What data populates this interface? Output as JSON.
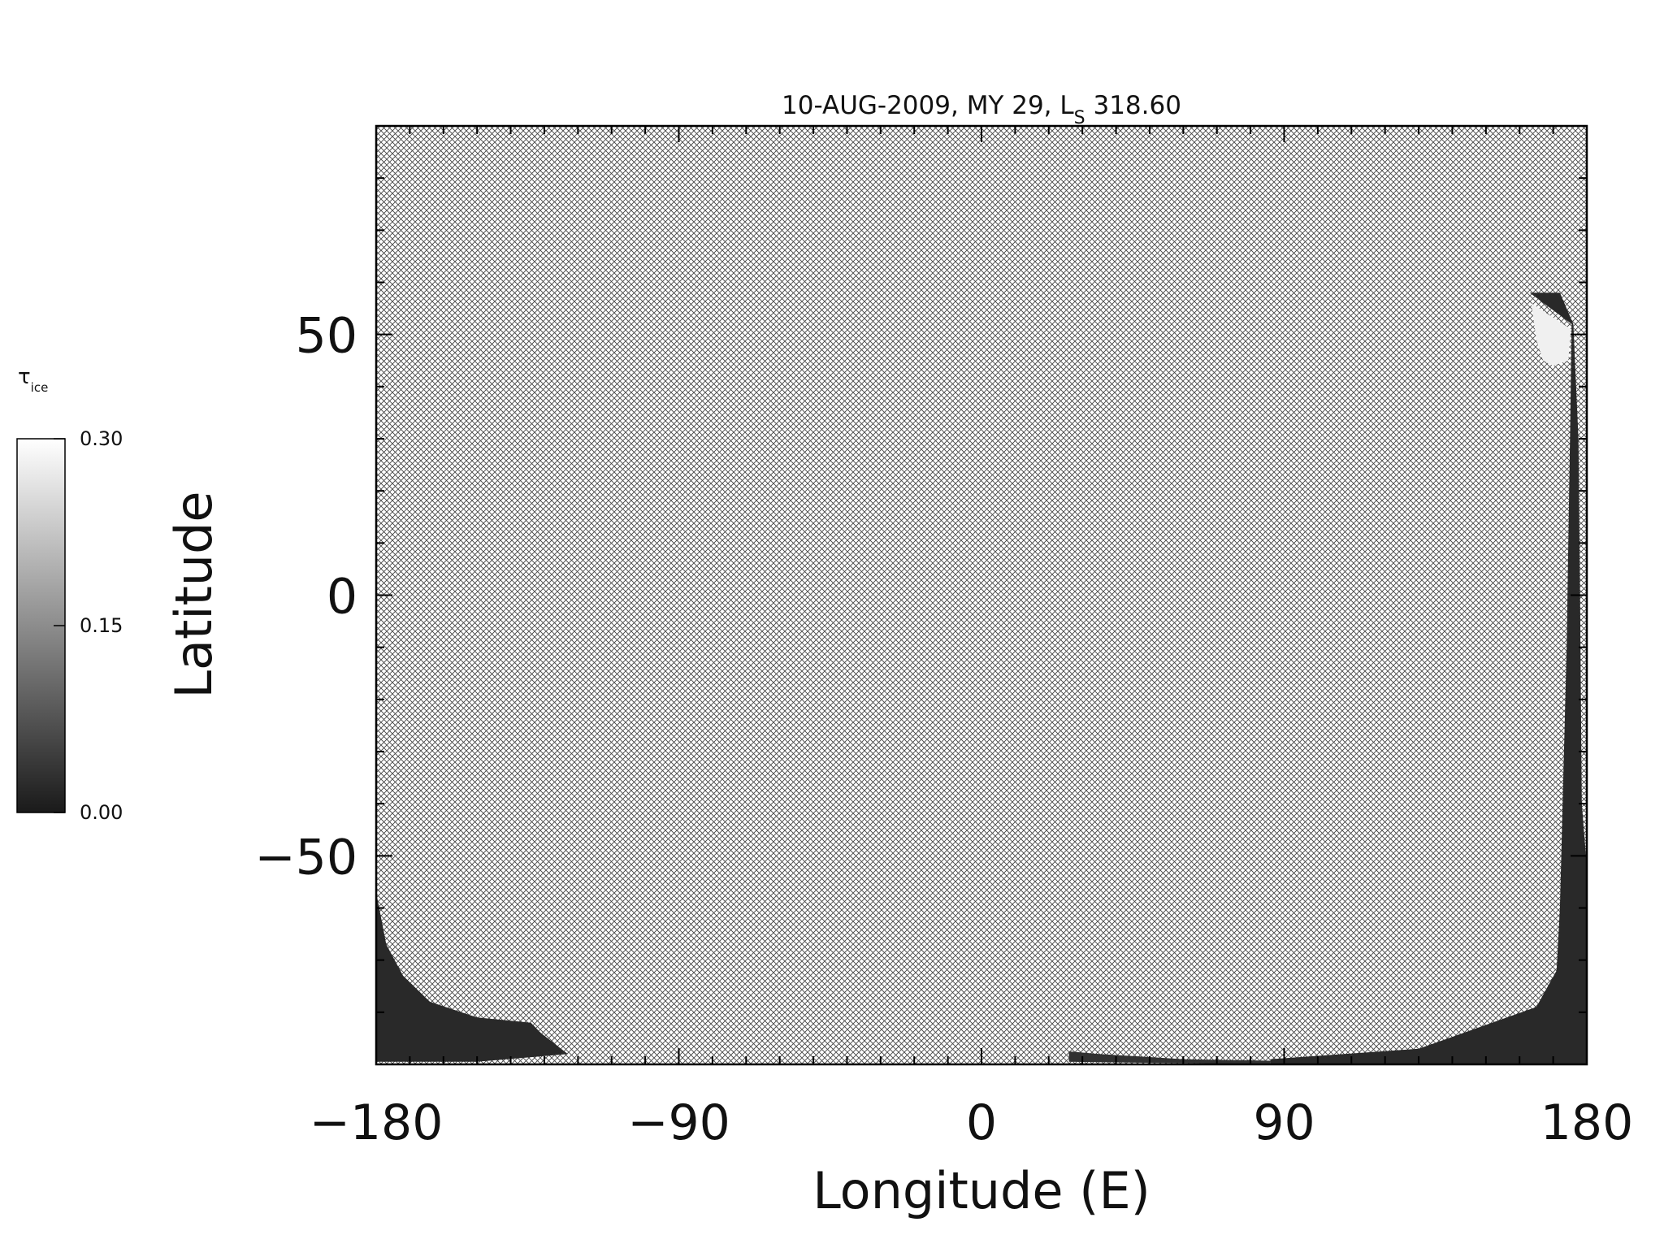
{
  "chart_data": {
    "type": "heatmap",
    "title": {
      "main": "10-AUG-2009, MY 29,  L",
      "subscript": "S",
      "value": " 318.60"
    },
    "xlabel": "Longitude (E)",
    "ylabel": "Latitude",
    "xlim": [
      -180,
      180
    ],
    "ylim": [
      -90,
      90
    ],
    "xticks": [
      {
        "value": -180,
        "label": "−180"
      },
      {
        "value": -90,
        "label": "−90"
      },
      {
        "value": 0,
        "label": "0"
      },
      {
        "value": 90,
        "label": "90"
      },
      {
        "value": 180,
        "label": "180"
      }
    ],
    "yticks": [
      {
        "value": -50,
        "label": "−50"
      },
      {
        "value": 0,
        "label": "0"
      },
      {
        "value": 50,
        "label": "50"
      }
    ],
    "x_minor_step": 10,
    "y_minor_step": 10,
    "no_data_fill": "cross-hatch",
    "colorbar": {
      "label_main": "τ",
      "label_sub": "ice",
      "range": [
        0.0,
        0.3
      ],
      "ticks": [
        {
          "value": 0.0,
          "label": "0.00"
        },
        {
          "value": 0.15,
          "label": "0.15"
        },
        {
          "value": 0.3,
          "label": "0.30"
        }
      ],
      "colors": [
        "#1a1a1a",
        "#ffffff"
      ]
    },
    "data_regions": [
      {
        "name": "eastern-strip",
        "value": 0.02,
        "polygon": [
          [
            163,
            58
          ],
          [
            175.5,
            52
          ],
          [
            175,
            30
          ],
          [
            174,
            -10
          ],
          [
            172,
            -60
          ],
          [
            171,
            -72
          ],
          [
            165,
            -79
          ],
          [
            130,
            -87
          ],
          [
            86,
            -89
          ],
          [
            86,
            -90
          ],
          [
            180,
            -90
          ],
          [
            180,
            -52
          ],
          [
            178.5,
            -40
          ],
          [
            178,
            0
          ],
          [
            177.5,
            30
          ],
          [
            176,
            52
          ],
          [
            172,
            58
          ]
        ]
      },
      {
        "name": "north-ice-cap",
        "value": 0.28,
        "polygon": [
          [
            163.5,
            56
          ],
          [
            175.3,
            51
          ],
          [
            174.5,
            45
          ],
          [
            170,
            44
          ],
          [
            167,
            45
          ],
          [
            165,
            49
          ]
        ]
      },
      {
        "name": "western-polar-patch",
        "value": 0.02,
        "polygon": [
          [
            -180,
            -57
          ],
          [
            -177,
            -67
          ],
          [
            -172,
            -73
          ],
          [
            -164,
            -78
          ],
          [
            -150,
            -81
          ],
          [
            -134,
            -82
          ],
          [
            -131,
            -84
          ],
          [
            -123,
            -88
          ],
          [
            -150,
            -89.5
          ],
          [
            -180,
            -89.5
          ]
        ]
      },
      {
        "name": "southern-sliver",
        "value": 0.03,
        "polygon": [
          [
            26,
            -87.5
          ],
          [
            35,
            -88
          ],
          [
            60,
            -89
          ],
          [
            86,
            -89.3
          ],
          [
            86,
            -90
          ],
          [
            26,
            -89.5
          ]
        ]
      }
    ]
  }
}
